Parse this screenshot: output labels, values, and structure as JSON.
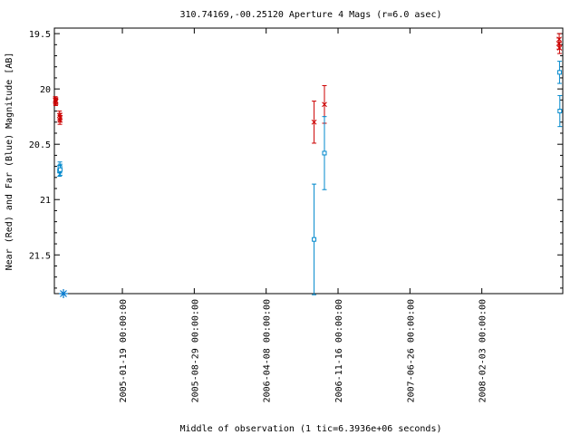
{
  "chart_data": {
    "type": "scatter",
    "title": "310.74169,-00.25120   Aperture 4 Mags (r=6.0 asec)",
    "xlabel": "Middle of observation (1 tic=6.3936e+06 seconds)",
    "ylabel": "Near (Red) and Far (Blue) Magnitude [AB]",
    "y_inverted": true,
    "ylim": [
      21.85,
      19.45
    ],
    "y_ticks": [
      19.5,
      20,
      20.5,
      21,
      21.5
    ],
    "y_tick_labels": [
      "19.5",
      "20",
      "20.5",
      "21",
      "21.5"
    ],
    "xlim": [
      "2004-06-23",
      "2008-10-10"
    ],
    "x_ticks": [
      "2005-01-19",
      "2005-08-29",
      "2006-04-08",
      "2006-11-16",
      "2007-06-26",
      "2008-02-03"
    ],
    "x_tick_labels": [
      "2005-01-19 00:00:00",
      "2005-08-29 00:00:00",
      "2006-04-08 00:00:00",
      "2006-11-16 00:00:00",
      "2007-06-26 00:00:00",
      "2008-02-03 00:00:00"
    ],
    "grid": false,
    "series": [
      {
        "name": "Near (Red)",
        "color": "#cc0000",
        "marker": "x",
        "points": [
          {
            "x": "2004-06-26",
            "y": 20.1,
            "err": 0.03
          },
          {
            "x": "2004-06-27",
            "y": 20.12,
            "err": 0.03
          },
          {
            "x": "2004-06-28",
            "y": 20.11,
            "err": 0.03
          },
          {
            "x": "2004-07-09",
            "y": 20.24,
            "err": 0.04
          },
          {
            "x": "2004-07-10",
            "y": 20.28,
            "err": 0.04
          },
          {
            "x": "2004-07-11",
            "y": 20.26,
            "err": 0.04
          },
          {
            "x": "2006-09-03",
            "y": 20.3,
            "err": 0.19
          },
          {
            "x": "2006-10-05",
            "y": 20.14,
            "err": 0.17
          },
          {
            "x": "2008-09-28",
            "y": 19.59,
            "err": 0.05
          },
          {
            "x": "2008-09-29",
            "y": 19.55,
            "err": 0.05
          },
          {
            "x": "2008-09-30",
            "y": 19.63,
            "err": 0.05
          }
        ]
      },
      {
        "name": "Far (Blue)",
        "color": "#0088cc",
        "marker": "square",
        "points": [
          {
            "x": "2004-07-09",
            "y": 20.74,
            "err": 0.05
          },
          {
            "x": "2004-07-10",
            "y": 20.71,
            "err": 0.05
          },
          {
            "x": "2004-07-11",
            "y": 20.73,
            "err": 0.05
          },
          {
            "x": "2006-09-03",
            "y": 21.36,
            "err": 0.5
          },
          {
            "x": "2006-10-05",
            "y": 20.58,
            "err": 0.33
          },
          {
            "x": "2008-09-30",
            "y": 19.85,
            "err": 0.1
          },
          {
            "x": "2008-10-01",
            "y": 20.2,
            "err": 0.14
          }
        ]
      }
    ]
  }
}
